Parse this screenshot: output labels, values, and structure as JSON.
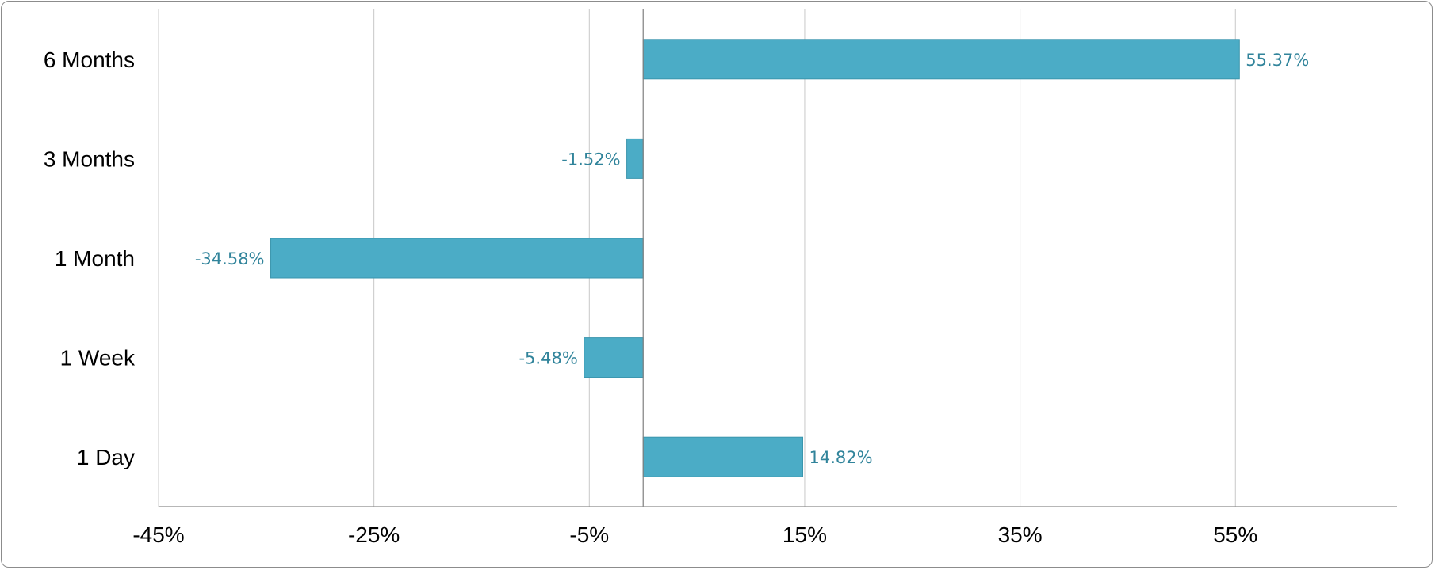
{
  "chart_data": {
    "type": "bar",
    "orientation": "horizontal",
    "categories": [
      "6 Months",
      "3 Months",
      "1 Month",
      "1 Week",
      "1 Day"
    ],
    "values": [
      55.37,
      -1.52,
      -34.58,
      -5.48,
      14.82
    ],
    "data_labels": [
      "55.37%",
      "-1.52%",
      "-34.58%",
      "-5.48%",
      "14.82%"
    ],
    "x_ticks": [
      -45,
      -25,
      -5,
      15,
      35,
      55
    ],
    "x_tick_labels": [
      "-45%",
      "-25%",
      "-5%",
      "15%",
      "35%",
      "55%"
    ],
    "xlim": [
      -45,
      70
    ],
    "grid": true,
    "legend": "none",
    "title": "",
    "xlabel": "",
    "ylabel": ""
  },
  "colors": {
    "bar": "#4bacc6",
    "bar_border": "#3a95ad",
    "data_label": "#31849b",
    "grid": "#c8c8c8",
    "axis": "#8c8c8c"
  }
}
